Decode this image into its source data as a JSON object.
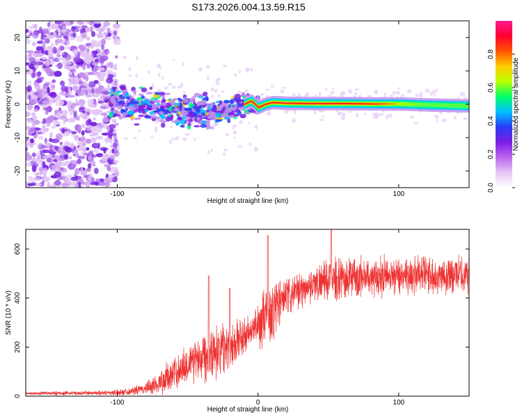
{
  "figure_title": "S173.2026.004.13.59.R15",
  "chart_data": [
    {
      "type": "heatmap",
      "title": "S173.2026.004.13.59.R15",
      "xlabel": "Height of straight line (km)",
      "ylabel": "Frequency (Hz)",
      "xlim": [
        -165,
        150
      ],
      "ylim": [
        -25,
        25
      ],
      "xticks": [
        -100,
        0,
        100
      ],
      "yticks": [
        -20,
        -10,
        0,
        10,
        20
      ],
      "colorbar": {
        "label": "Normalized spectral amplitude",
        "range": [
          0.0,
          1.0
        ],
        "ticks": [
          "0.0",
          "0.2",
          "0.4",
          "0.6",
          "0.8"
        ],
        "colors": [
          "#ffffff",
          "#e6c6f5",
          "#bb66ee",
          "#7a1ee6",
          "#2a3cf5",
          "#00bfff",
          "#00ff66",
          "#bbff00",
          "#ffcc00",
          "#ff5500",
          "#ff0033",
          "#ff1a8c"
        ]
      },
      "centerline": {
        "x": [
          -105,
          -90,
          -75,
          -60,
          -45,
          -30,
          -20,
          -10,
          -5,
          0,
          5,
          10,
          20,
          40,
          60,
          80,
          100,
          120,
          140,
          150
        ],
        "freq": [
          1,
          0,
          -1,
          -2,
          -2,
          -3,
          -2,
          0,
          1,
          -1,
          0,
          0.5,
          0.3,
          0.2,
          0.2,
          0.1,
          0.1,
          -0.2,
          -0.4,
          -0.5
        ]
      },
      "noise_region": {
        "x_from": -165,
        "x_to": -100,
        "freq_range": [
          -25,
          25
        ]
      }
    },
    {
      "type": "line",
      "title": "",
      "xlabel": "Height of straight line (km)",
      "ylabel": "SNR (10 * v/v)",
      "xlim": [
        -165,
        150
      ],
      "ylim": [
        0,
        680
      ],
      "xticks": [
        -100,
        0,
        100
      ],
      "yticks": [
        0,
        200,
        400,
        600
      ],
      "series": [
        {
          "name": "SNR",
          "color": "#ee3333",
          "x": [
            -165,
            -150,
            -130,
            -110,
            -100,
            -90,
            -80,
            -70,
            -60,
            -50,
            -40,
            -30,
            -20,
            -10,
            -5,
            0,
            5,
            10,
            15,
            20,
            30,
            40,
            50,
            60,
            70,
            80,
            90,
            100,
            110,
            120,
            130,
            140,
            150
          ],
          "baseline": [
            10,
            12,
            12,
            14,
            15,
            20,
            30,
            55,
            90,
            130,
            170,
            190,
            210,
            240,
            260,
            290,
            320,
            340,
            380,
            400,
            430,
            460,
            470,
            480,
            485,
            490,
            490,
            495,
            495,
            495,
            495,
            495,
            495
          ],
          "amplitude": [
            5,
            8,
            8,
            10,
            12,
            15,
            25,
            50,
            70,
            80,
            110,
            110,
            100,
            80,
            70,
            90,
            120,
            140,
            120,
            80,
            70,
            70,
            80,
            85,
            85,
            80,
            80,
            80,
            80,
            80,
            80,
            75,
            75
          ],
          "peaks": [
            {
              "x": -35,
              "y": 490
            },
            {
              "x": -20,
              "y": 440
            },
            {
              "x": 7,
              "y": 655
            },
            {
              "x": 52,
              "y": 680
            }
          ]
        }
      ]
    }
  ]
}
